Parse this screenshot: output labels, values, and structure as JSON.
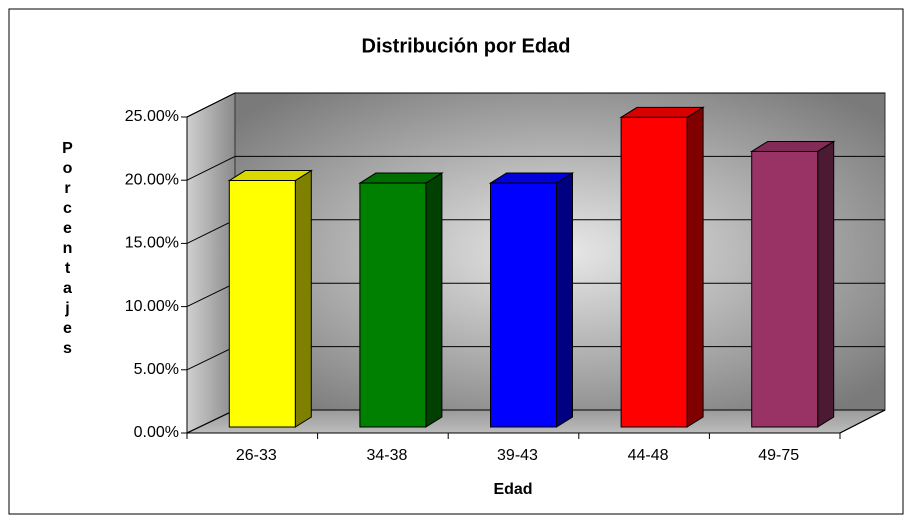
{
  "chart_data": {
    "type": "bar3d",
    "title": "Distribución por Edad",
    "x_label": "Edad",
    "y_label": "Porcentajes",
    "categories": [
      "26-33",
      "34-38",
      "39-43",
      "44-48",
      "49-75"
    ],
    "values": [
      19.5,
      19.3,
      19.3,
      24.5,
      21.8
    ],
    "colors": [
      "#ffff00",
      "#008000",
      "#0000ff",
      "#ff0000",
      "#993366"
    ],
    "ylim": [
      0,
      25
    ],
    "yticks": [
      {
        "value": 0,
        "label": "0.00%"
      },
      {
        "value": 5,
        "label": "5.00%"
      },
      {
        "value": 10,
        "label": "10.00%"
      },
      {
        "value": 15,
        "label": "15.00%"
      },
      {
        "value": 20,
        "label": "20.00%"
      },
      {
        "value": 25,
        "label": "25.00%"
      }
    ],
    "grid": true
  }
}
